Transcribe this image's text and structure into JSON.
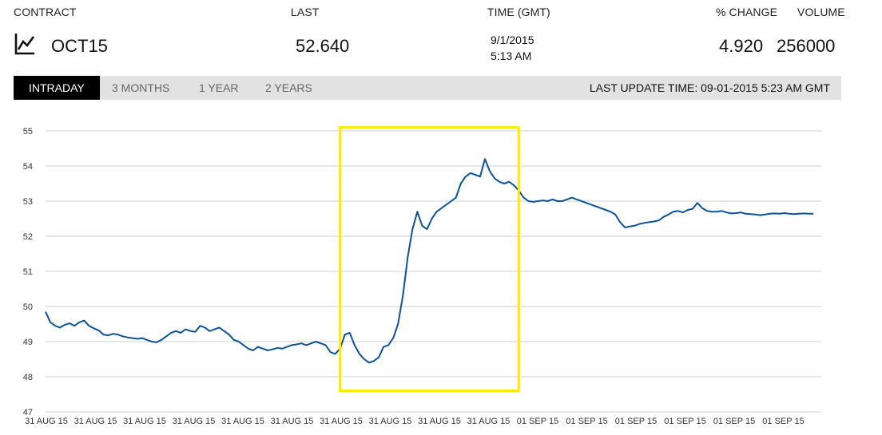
{
  "header": {
    "contract_label": "CONTRACT",
    "last_label": "LAST",
    "time_label": "TIME (GMT)",
    "change_label": "% CHANGE",
    "volume_label": "VOLUME"
  },
  "quote": {
    "icon": "chart-line-icon",
    "contract": "OCT15",
    "last": "52.640",
    "date": "9/1/2015",
    "time": "5:13 AM",
    "change": "4.920",
    "volume": "256000"
  },
  "tabs": [
    {
      "label": "INTRADAY",
      "active": true
    },
    {
      "label": "3 MONTHS",
      "active": false
    },
    {
      "label": "1 YEAR",
      "active": false
    },
    {
      "label": "2 YEARS",
      "active": false
    }
  ],
  "last_update": "LAST UPDATE TIME: 09-01-2015 5:23 AM GMT",
  "highlight_color": "#ffeb00",
  "chart_data": {
    "type": "line",
    "title": "",
    "xlabel": "",
    "ylabel": "",
    "ylim": [
      47,
      55
    ],
    "yticks": [
      47,
      48,
      49,
      50,
      51,
      52,
      53,
      54,
      55
    ],
    "xtick_labels": [
      "31 AUG 15",
      "31 AUG 15",
      "31 AUG 15",
      "31 AUG 15",
      "31 AUG 15",
      "31 AUG 15",
      "31 AUG 15",
      "31 AUG 15",
      "31 AUG 15",
      "31 AUG 15",
      "01 SEP 15",
      "01 SEP 15",
      "01 SEP 15",
      "01 SEP 15",
      "01 SEP 15",
      "01 SEP 15"
    ],
    "grid": true,
    "line_color": "#0d5396",
    "series": [
      {
        "x": [
          0,
          1,
          2,
          3,
          4,
          5,
          6,
          7,
          8,
          9,
          10,
          11,
          12,
          13,
          14,
          15,
          16,
          17,
          18,
          19,
          20,
          21,
          22,
          23,
          24,
          25,
          26,
          27,
          28,
          29,
          30,
          31,
          32,
          33,
          34,
          35,
          36,
          37,
          38,
          39,
          40,
          41,
          42,
          43,
          44,
          45,
          46,
          47,
          48,
          49,
          50,
          51,
          52,
          53,
          54,
          55,
          56,
          57,
          58,
          59,
          60,
          61,
          62,
          63,
          64,
          65,
          66,
          67,
          68,
          69,
          70,
          71,
          72,
          73,
          74,
          75,
          76,
          77,
          78,
          79,
          80,
          81,
          82,
          83,
          84,
          85,
          86,
          87,
          88,
          89,
          90,
          91,
          92,
          93,
          94,
          95,
          96,
          97,
          98,
          99,
          100,
          101,
          102,
          103,
          104,
          105,
          106,
          107,
          108,
          109,
          110,
          111,
          112,
          113,
          114,
          115,
          116,
          117,
          118,
          119,
          120,
          121,
          122,
          123,
          124,
          125,
          126,
          127,
          128,
          129,
          130,
          131,
          132,
          133,
          134,
          135,
          136,
          137,
          138,
          139,
          140,
          141,
          142,
          143,
          144,
          145,
          146,
          147,
          148,
          149,
          150,
          151,
          152,
          153,
          154,
          155,
          156,
          157,
          158,
          159
        ],
        "y": [
          49.85,
          49.55,
          49.45,
          49.4,
          49.48,
          49.52,
          49.45,
          49.55,
          49.6,
          49.45,
          49.38,
          49.32,
          49.2,
          49.18,
          49.22,
          49.2,
          49.15,
          49.12,
          49.1,
          49.08,
          49.1,
          49.05,
          49.0,
          48.98,
          49.05,
          49.15,
          49.25,
          49.3,
          49.25,
          49.35,
          49.3,
          49.28,
          49.45,
          49.4,
          49.3,
          49.35,
          49.4,
          49.3,
          49.2,
          49.05,
          49.0,
          48.9,
          48.8,
          48.75,
          48.85,
          48.8,
          48.75,
          48.78,
          48.82,
          48.8,
          48.85,
          48.9,
          48.92,
          48.95,
          48.9,
          48.95,
          49.0,
          48.95,
          48.9,
          48.7,
          48.65,
          48.8,
          49.2,
          49.25,
          48.9,
          48.65,
          48.5,
          48.4,
          48.45,
          48.55,
          48.85,
          48.9,
          49.1,
          49.5,
          50.3,
          51.4,
          52.2,
          52.7,
          52.3,
          52.2,
          52.5,
          52.7,
          52.8,
          52.9,
          53.0,
          53.1,
          53.5,
          53.7,
          53.8,
          53.75,
          53.7,
          54.2,
          53.85,
          53.65,
          53.55,
          53.5,
          53.55,
          53.45,
          53.3,
          53.1,
          53.0,
          52.98,
          53.0,
          53.02,
          53.0,
          53.05,
          53.0,
          53.0,
          53.05,
          53.1,
          53.05,
          53.0,
          52.95,
          52.9,
          52.85,
          52.8,
          52.75,
          52.7,
          52.62,
          52.4,
          52.25,
          52.28,
          52.3,
          52.35,
          52.38,
          52.4,
          52.42,
          52.45,
          52.55,
          52.62,
          52.7,
          52.72,
          52.68,
          52.75,
          52.78,
          52.95,
          52.8,
          52.72,
          52.7,
          52.7,
          52.72,
          52.68,
          52.65,
          52.66,
          52.68,
          52.64,
          52.63,
          52.62,
          52.6,
          52.62,
          52.64,
          52.65,
          52.64,
          52.66,
          52.64,
          52.63,
          52.64,
          52.65,
          52.64,
          52.64
        ]
      }
    ],
    "highlight_box": {
      "x_start": 61,
      "x_end": 98,
      "y_min": 47.6,
      "y_max": 55.1
    }
  }
}
